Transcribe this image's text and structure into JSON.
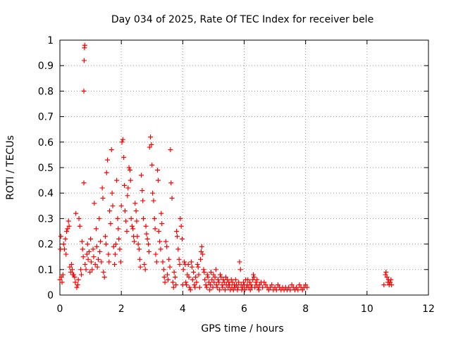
{
  "chart_data": {
    "type": "scatter",
    "title": "Day 034 of 2025, Rate Of TEC Index for receiver bele",
    "xlabel": "GPS time / hours",
    "ylabel": "ROTI / TECUs",
    "xlim": [
      0,
      12
    ],
    "ylim": [
      0,
      1
    ],
    "x_ticks": [
      "0",
      "2",
      "4",
      "6",
      "8",
      "10",
      "12"
    ],
    "y_ticks": [
      "0",
      "0.1",
      "0.2",
      "0.3",
      "0.4",
      "0.5",
      "0.6",
      "0.7",
      "0.8",
      "0.9",
      "1"
    ],
    "grid": true,
    "marker": "+",
    "marker_color": "#ff0000",
    "series": [
      {
        "points": [
          [
            0.0,
            0.06
          ],
          [
            0.02,
            0.18
          ],
          [
            0.03,
            0.23
          ],
          [
            0.05,
            0.07
          ],
          [
            0.07,
            0.05
          ],
          [
            0.1,
            0.08
          ],
          [
            0.12,
            0.2
          ],
          [
            0.15,
            0.18
          ],
          [
            0.18,
            0.22
          ],
          [
            0.2,
            0.16
          ],
          [
            0.22,
            0.25
          ],
          [
            0.25,
            0.26
          ],
          [
            0.28,
            0.29
          ],
          [
            0.3,
            0.27
          ],
          [
            0.32,
            0.11
          ],
          [
            0.35,
            0.09
          ],
          [
            0.38,
            0.12
          ],
          [
            0.4,
            0.1
          ],
          [
            0.42,
            0.08
          ],
          [
            0.45,
            0.08
          ],
          [
            0.48,
            0.07
          ],
          [
            0.5,
            0.05
          ],
          [
            0.52,
            0.32
          ],
          [
            0.55,
            0.03
          ],
          [
            0.58,
            0.04
          ],
          [
            0.6,
            0.06
          ],
          [
            0.62,
            0.3
          ],
          [
            0.65,
            0.27
          ],
          [
            0.68,
            0.1
          ],
          [
            0.7,
            0.08
          ],
          [
            0.72,
            0.21
          ],
          [
            0.74,
            0.18
          ],
          [
            0.76,
            0.15
          ],
          [
            0.78,
            0.44
          ],
          [
            0.8,
            0.97
          ],
          [
            0.81,
            0.98
          ],
          [
            0.79,
            0.92
          ],
          [
            0.78,
            0.8
          ],
          [
            0.82,
            0.12
          ],
          [
            0.85,
            0.1
          ],
          [
            0.88,
            0.16
          ],
          [
            0.9,
            0.2
          ],
          [
            0.92,
            0.14
          ],
          [
            0.95,
            0.17
          ],
          [
            0.98,
            0.09
          ],
          [
            1.0,
            0.22
          ],
          [
            1.02,
            0.13
          ],
          [
            1.05,
            0.1
          ],
          [
            1.08,
            0.18
          ],
          [
            1.1,
            0.15
          ],
          [
            1.12,
            0.36
          ],
          [
            1.15,
            0.12
          ],
          [
            1.18,
            0.26
          ],
          [
            1.2,
            0.19
          ],
          [
            1.22,
            0.11
          ],
          [
            1.25,
            0.14
          ],
          [
            1.28,
            0.3
          ],
          [
            1.3,
            0.17
          ],
          [
            1.32,
            0.21
          ],
          [
            1.35,
            0.13
          ],
          [
            1.38,
            0.42
          ],
          [
            1.4,
            0.38
          ],
          [
            1.42,
            0.09
          ],
          [
            1.45,
            0.07
          ],
          [
            1.48,
            0.23
          ],
          [
            1.5,
            0.2
          ],
          [
            1.52,
            0.48
          ],
          [
            1.55,
            0.53
          ],
          [
            1.58,
            0.16
          ],
          [
            1.6,
            0.13
          ],
          [
            1.62,
            0.33
          ],
          [
            1.65,
            0.28
          ],
          [
            1.68,
            0.57
          ],
          [
            1.7,
            0.4
          ],
          [
            1.72,
            0.35
          ],
          [
            1.75,
            0.19
          ],
          [
            1.78,
            0.12
          ],
          [
            1.8,
            0.16
          ],
          [
            1.82,
            0.2
          ],
          [
            1.85,
            0.45
          ],
          [
            1.88,
            0.3
          ],
          [
            1.9,
            0.26
          ],
          [
            1.92,
            0.22
          ],
          [
            1.95,
            0.18
          ],
          [
            1.98,
            0.13
          ],
          [
            2.0,
            0.35
          ],
          [
            2.02,
            0.6
          ],
          [
            2.05,
            0.61
          ],
          [
            2.08,
            0.54
          ],
          [
            2.1,
            0.43
          ],
          [
            2.12,
            0.33
          ],
          [
            2.15,
            0.29
          ],
          [
            2.18,
            0.25
          ],
          [
            2.2,
            0.39
          ],
          [
            2.22,
            0.42
          ],
          [
            2.25,
            0.5
          ],
          [
            2.28,
            0.49
          ],
          [
            2.3,
            0.45
          ],
          [
            2.32,
            0.3
          ],
          [
            2.35,
            0.27
          ],
          [
            2.38,
            0.26
          ],
          [
            2.4,
            0.23
          ],
          [
            2.42,
            0.21
          ],
          [
            2.45,
            0.36
          ],
          [
            2.48,
            0.33
          ],
          [
            2.5,
            0.29
          ],
          [
            2.52,
            0.23
          ],
          [
            2.55,
            0.2
          ],
          [
            2.58,
            0.18
          ],
          [
            2.6,
            0.14
          ],
          [
            2.62,
            0.11
          ],
          [
            2.65,
            0.47
          ],
          [
            2.68,
            0.41
          ],
          [
            2.7,
            0.37
          ],
          [
            2.72,
            0.3
          ],
          [
            2.75,
            0.12
          ],
          [
            2.78,
            0.1
          ],
          [
            2.8,
            0.27
          ],
          [
            2.82,
            0.24
          ],
          [
            2.85,
            0.22
          ],
          [
            2.88,
            0.2
          ],
          [
            2.9,
            0.17
          ],
          [
            2.92,
            0.58
          ],
          [
            2.95,
            0.62
          ],
          [
            2.98,
            0.59
          ],
          [
            3.0,
            0.51
          ],
          [
            3.02,
            0.4
          ],
          [
            3.05,
            0.37
          ],
          [
            3.08,
            0.3
          ],
          [
            3.1,
            0.26
          ],
          [
            3.12,
            0.16
          ],
          [
            3.15,
            0.13
          ],
          [
            3.18,
            0.49
          ],
          [
            3.2,
            0.45
          ],
          [
            3.22,
            0.25
          ],
          [
            3.25,
            0.21
          ],
          [
            3.28,
            0.18
          ],
          [
            3.3,
            0.32
          ],
          [
            3.32,
            0.28
          ],
          [
            3.35,
            0.13
          ],
          [
            3.38,
            0.1
          ],
          [
            3.4,
            0.07
          ],
          [
            3.42,
            0.05
          ],
          [
            3.45,
            0.21
          ],
          [
            3.48,
            0.19
          ],
          [
            3.5,
            0.08
          ],
          [
            3.52,
            0.06
          ],
          [
            3.55,
            0.14
          ],
          [
            3.58,
            0.11
          ],
          [
            3.6,
            0.57
          ],
          [
            3.62,
            0.44
          ],
          [
            3.65,
            0.38
          ],
          [
            3.68,
            0.05
          ],
          [
            3.7,
            0.03
          ],
          [
            3.72,
            0.09
          ],
          [
            3.75,
            0.07
          ],
          [
            3.78,
            0.04
          ],
          [
            3.8,
            0.25
          ],
          [
            3.82,
            0.23
          ],
          [
            3.85,
            0.18
          ],
          [
            3.88,
            0.14
          ],
          [
            3.9,
            0.12
          ],
          [
            3.92,
            0.3
          ],
          [
            3.95,
            0.27
          ],
          [
            3.98,
            0.22
          ],
          [
            4.0,
            0.04
          ],
          [
            4.02,
            0.1
          ],
          [
            4.05,
            0.13
          ],
          [
            4.08,
            0.12
          ],
          [
            4.1,
            0.05
          ],
          [
            4.12,
            0.04
          ],
          [
            4.15,
            0.08
          ],
          [
            4.18,
            0.12
          ],
          [
            4.2,
            0.07
          ],
          [
            4.22,
            0.03
          ],
          [
            4.25,
            0.02
          ],
          [
            4.28,
            0.13
          ],
          [
            4.3,
            0.11
          ],
          [
            4.32,
            0.06
          ],
          [
            4.35,
            0.09
          ],
          [
            4.38,
            0.04
          ],
          [
            4.4,
            0.03
          ],
          [
            4.42,
            0.07
          ],
          [
            4.45,
            0.05
          ],
          [
            4.48,
            0.12
          ],
          [
            4.5,
            0.11
          ],
          [
            4.52,
            0.08
          ],
          [
            4.55,
            0.03
          ],
          [
            4.58,
            0.14
          ],
          [
            4.6,
            0.17
          ],
          [
            4.62,
            0.19
          ],
          [
            4.65,
            0.16
          ],
          [
            4.68,
            0.1
          ],
          [
            4.7,
            0.09
          ],
          [
            4.72,
            0.06
          ],
          [
            4.75,
            0.04
          ],
          [
            4.78,
            0.03
          ],
          [
            4.8,
            0.08
          ],
          [
            4.82,
            0.07
          ],
          [
            4.85,
            0.05
          ],
          [
            4.88,
            0.02
          ],
          [
            4.9,
            0.04
          ],
          [
            4.92,
            0.09
          ],
          [
            4.95,
            0.06
          ],
          [
            4.98,
            0.03
          ],
          [
            5.0,
            0.08
          ],
          [
            5.02,
            0.05
          ],
          [
            5.05,
            0.07
          ],
          [
            5.08,
            0.1
          ],
          [
            5.1,
            0.04
          ],
          [
            5.12,
            0.03
          ],
          [
            5.15,
            0.06
          ],
          [
            5.18,
            0.05
          ],
          [
            5.2,
            0.02
          ],
          [
            5.22,
            0.08
          ],
          [
            5.25,
            0.07
          ],
          [
            5.28,
            0.04
          ],
          [
            5.3,
            0.03
          ],
          [
            5.32,
            0.06
          ],
          [
            5.35,
            0.05
          ],
          [
            5.38,
            0.02
          ],
          [
            5.4,
            0.07
          ],
          [
            5.42,
            0.04
          ],
          [
            5.45,
            0.06
          ],
          [
            5.48,
            0.03
          ],
          [
            5.5,
            0.05
          ],
          [
            5.52,
            0.04
          ],
          [
            5.55,
            0.02
          ],
          [
            5.58,
            0.06
          ],
          [
            5.6,
            0.03
          ],
          [
            5.62,
            0.05
          ],
          [
            5.65,
            0.02
          ],
          [
            5.68,
            0.04
          ],
          [
            5.7,
            0.03
          ],
          [
            5.72,
            0.06
          ],
          [
            5.75,
            0.04
          ],
          [
            5.78,
            0.02
          ],
          [
            5.8,
            0.03
          ],
          [
            5.82,
            0.05
          ],
          [
            5.85,
            0.13
          ],
          [
            5.88,
            0.1
          ],
          [
            5.9,
            0.04
          ],
          [
            5.92,
            0.02
          ],
          [
            5.95,
            0.03
          ],
          [
            5.98,
            0.05
          ],
          [
            6.0,
            0.04
          ],
          [
            6.02,
            0.02
          ],
          [
            6.05,
            0.06
          ],
          [
            6.08,
            0.03
          ],
          [
            6.1,
            0.04
          ],
          [
            6.12,
            0.06
          ],
          [
            6.15,
            0.03
          ],
          [
            6.18,
            0.05
          ],
          [
            6.2,
            0.02
          ],
          [
            6.22,
            0.04
          ],
          [
            6.25,
            0.03
          ],
          [
            6.28,
            0.06
          ],
          [
            6.3,
            0.08
          ],
          [
            6.32,
            0.07
          ],
          [
            6.35,
            0.03
          ],
          [
            6.38,
            0.05
          ],
          [
            6.4,
            0.04
          ],
          [
            6.42,
            0.06
          ],
          [
            6.45,
            0.03
          ],
          [
            6.48,
            0.02
          ],
          [
            6.5,
            0.04
          ],
          [
            6.55,
            0.05
          ],
          [
            6.6,
            0.03
          ],
          [
            6.65,
            0.05
          ],
          [
            6.7,
            0.04
          ],
          [
            6.75,
            0.03
          ],
          [
            6.8,
            0.02
          ],
          [
            6.85,
            0.03
          ],
          [
            6.9,
            0.04
          ],
          [
            6.95,
            0.02
          ],
          [
            7.0,
            0.03
          ],
          [
            7.05,
            0.02
          ],
          [
            7.1,
            0.04
          ],
          [
            7.15,
            0.03
          ],
          [
            7.2,
            0.02
          ],
          [
            7.25,
            0.03
          ],
          [
            7.3,
            0.02
          ],
          [
            7.35,
            0.03
          ],
          [
            7.4,
            0.02
          ],
          [
            7.45,
            0.03
          ],
          [
            7.5,
            0.02
          ],
          [
            7.55,
            0.04
          ],
          [
            7.6,
            0.03
          ],
          [
            7.65,
            0.02
          ],
          [
            7.7,
            0.03
          ],
          [
            7.75,
            0.02
          ],
          [
            7.8,
            0.04
          ],
          [
            7.85,
            0.03
          ],
          [
            7.9,
            0.02
          ],
          [
            7.95,
            0.03
          ],
          [
            8.0,
            0.04
          ],
          [
            8.05,
            0.03
          ],
          [
            10.55,
            0.04
          ],
          [
            10.6,
            0.08
          ],
          [
            10.62,
            0.09
          ],
          [
            10.65,
            0.07
          ],
          [
            10.68,
            0.05
          ],
          [
            10.7,
            0.06
          ],
          [
            10.72,
            0.04
          ],
          [
            10.75,
            0.05
          ],
          [
            10.78,
            0.06
          ],
          [
            10.8,
            0.04
          ]
        ]
      }
    ]
  }
}
